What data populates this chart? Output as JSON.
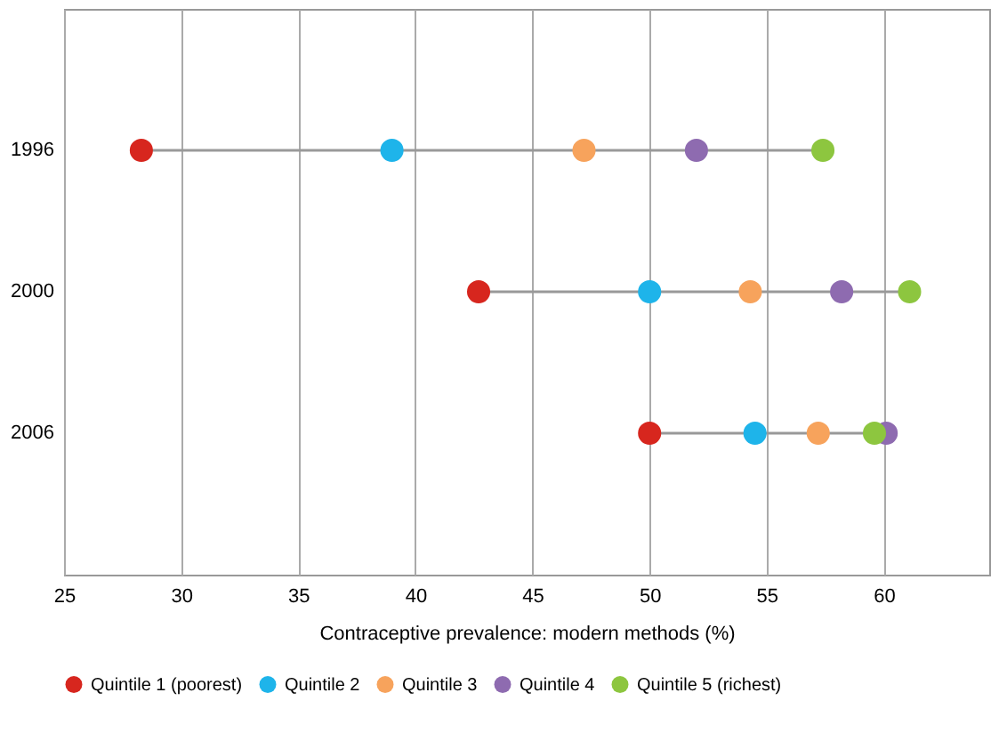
{
  "chart_data": {
    "type": "scatter",
    "orientation": "horizontal",
    "categories": [
      "1996",
      "2000",
      "2006"
    ],
    "xlabel": "Contraceptive prevalence: modern methods (%)",
    "xlim": [
      25,
      64.5
    ],
    "xticks": [
      25,
      30,
      35,
      40,
      45,
      50,
      55,
      60
    ],
    "grid": "x",
    "legend": "bottom",
    "marker": "circle",
    "series": [
      {
        "name": "Quintile 1 (poorest)",
        "color": "#d7261e",
        "values": [
          28.3,
          42.7,
          50.0
        ]
      },
      {
        "name": "Quintile 2",
        "color": "#1eb4ea",
        "values": [
          39.0,
          50.0,
          54.5
        ]
      },
      {
        "name": "Quintile 3",
        "color": "#f7a35c",
        "values": [
          47.2,
          54.3,
          57.2
        ]
      },
      {
        "name": "Quintile 4",
        "color": "#8e6bb0",
        "values": [
          52.0,
          58.2,
          60.1
        ]
      },
      {
        "name": "Quintile 5 (richest)",
        "color": "#8dc63f",
        "values": [
          57.4,
          61.1,
          59.6
        ]
      }
    ]
  }
}
